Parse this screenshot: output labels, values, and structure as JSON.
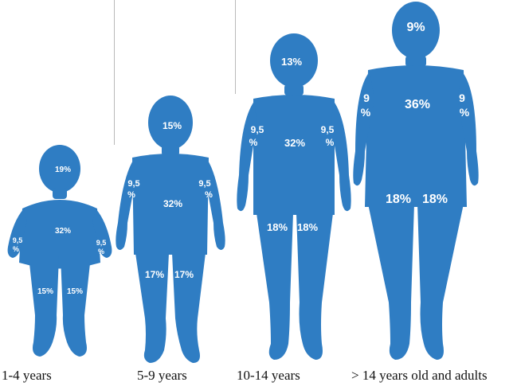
{
  "colors": {
    "body": "#2f7dc3",
    "label": "#ffffff",
    "caption": "#111111",
    "divider": "#b9b9b9"
  },
  "figures": [
    {
      "caption": "1-4 years",
      "head": "19%",
      "arm_left": [
        "9,5",
        "%"
      ],
      "arm_right": [
        "9,5",
        "%"
      ],
      "trunk": "32%",
      "leg_left": "15%",
      "leg_right": "15%"
    },
    {
      "caption": "5-9 years",
      "head": "15%",
      "arm_left": [
        "9,5",
        "%"
      ],
      "arm_right": [
        "9,5",
        "%"
      ],
      "trunk": "32%",
      "leg_left": "17%",
      "leg_right": "17%"
    },
    {
      "caption": "10-14 years",
      "head": "13%",
      "arm_left": [
        "9,5",
        "%"
      ],
      "arm_right": [
        "9,5",
        "%"
      ],
      "trunk": "32%",
      "leg_left": "18%",
      "leg_right": "18%"
    },
    {
      "caption": "> 14 years old and adults",
      "head": "9%",
      "arm_left": [
        "9",
        "%"
      ],
      "arm_right": [
        "9",
        "%"
      ],
      "trunk": "36%",
      "leg_left": "18%",
      "leg_right": "18%"
    }
  ]
}
